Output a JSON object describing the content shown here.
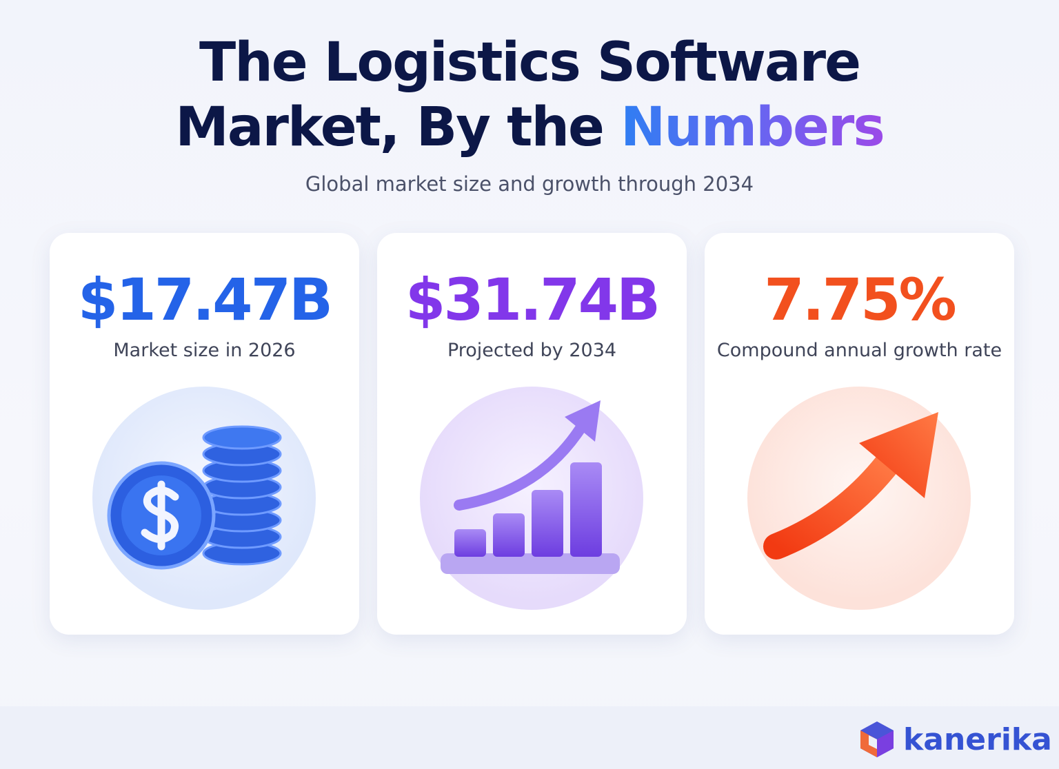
{
  "header": {
    "title_line1": "The Logistics Software",
    "title_line2": "Market, By the",
    "title_highlight": "Numbers",
    "subtitle": "Global market size and growth through 2034"
  },
  "cards": [
    {
      "value": "$17.47B",
      "label": "Market size in 2026"
    },
    {
      "value": "$31.74B",
      "label": "Projected by 2034"
    },
    {
      "value": "7.75%",
      "label": "Compound annual growth rate"
    }
  ],
  "footer": {
    "brand": "kanerika"
  }
}
